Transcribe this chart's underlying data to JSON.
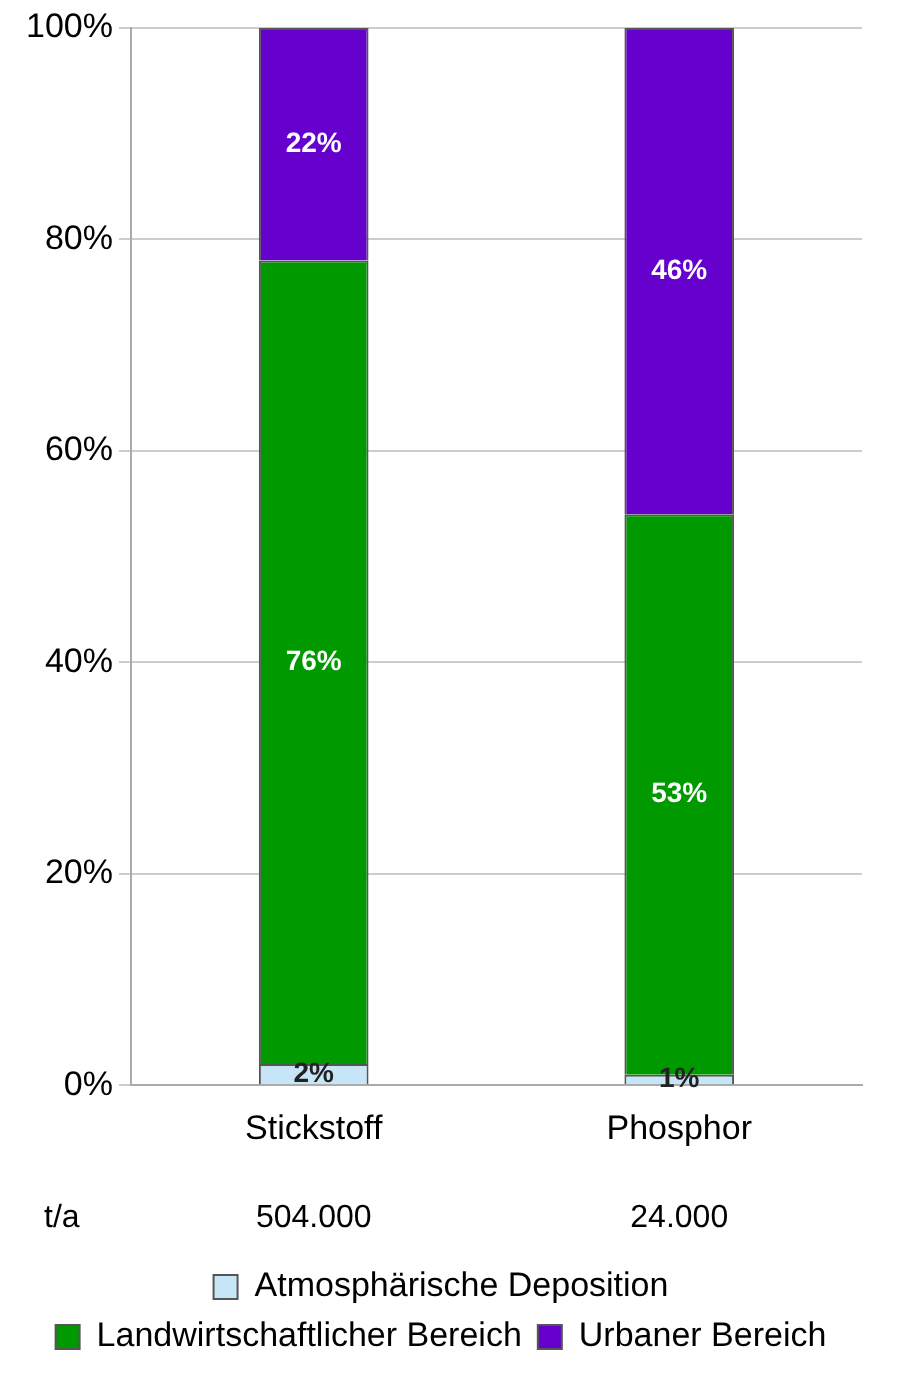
{
  "chart_data": {
    "type": "bar",
    "stacked": true,
    "categories": [
      "Stickstoff",
      "Phosphor"
    ],
    "series": [
      {
        "name": "Atmosphärische Deposition",
        "color": "#c6e6f8",
        "values": [
          2,
          1
        ],
        "value_labels": [
          "2%",
          "1%"
        ]
      },
      {
        "name": "Landwirtschaftlicher Bereich",
        "color": "#009900",
        "values": [
          76,
          53
        ],
        "value_labels": [
          "76%",
          "53%"
        ]
      },
      {
        "name": "Urbaner Bereich",
        "color": "#6600cc",
        "values": [
          22,
          46
        ],
        "value_labels": [
          "22%",
          "46%"
        ]
      }
    ],
    "ylim": [
      0,
      100
    ],
    "yticks": [
      {
        "value": 0,
        "label": "0%"
      },
      {
        "value": 20,
        "label": "20%"
      },
      {
        "value": 40,
        "label": "40%"
      },
      {
        "value": 60,
        "label": "60%"
      },
      {
        "value": 80,
        "label": "80%"
      },
      {
        "value": 100,
        "label": "100%"
      }
    ],
    "grid": "y",
    "legend": "bottom",
    "annotations": [
      "t/a",
      "504.000",
      "24.000"
    ]
  }
}
